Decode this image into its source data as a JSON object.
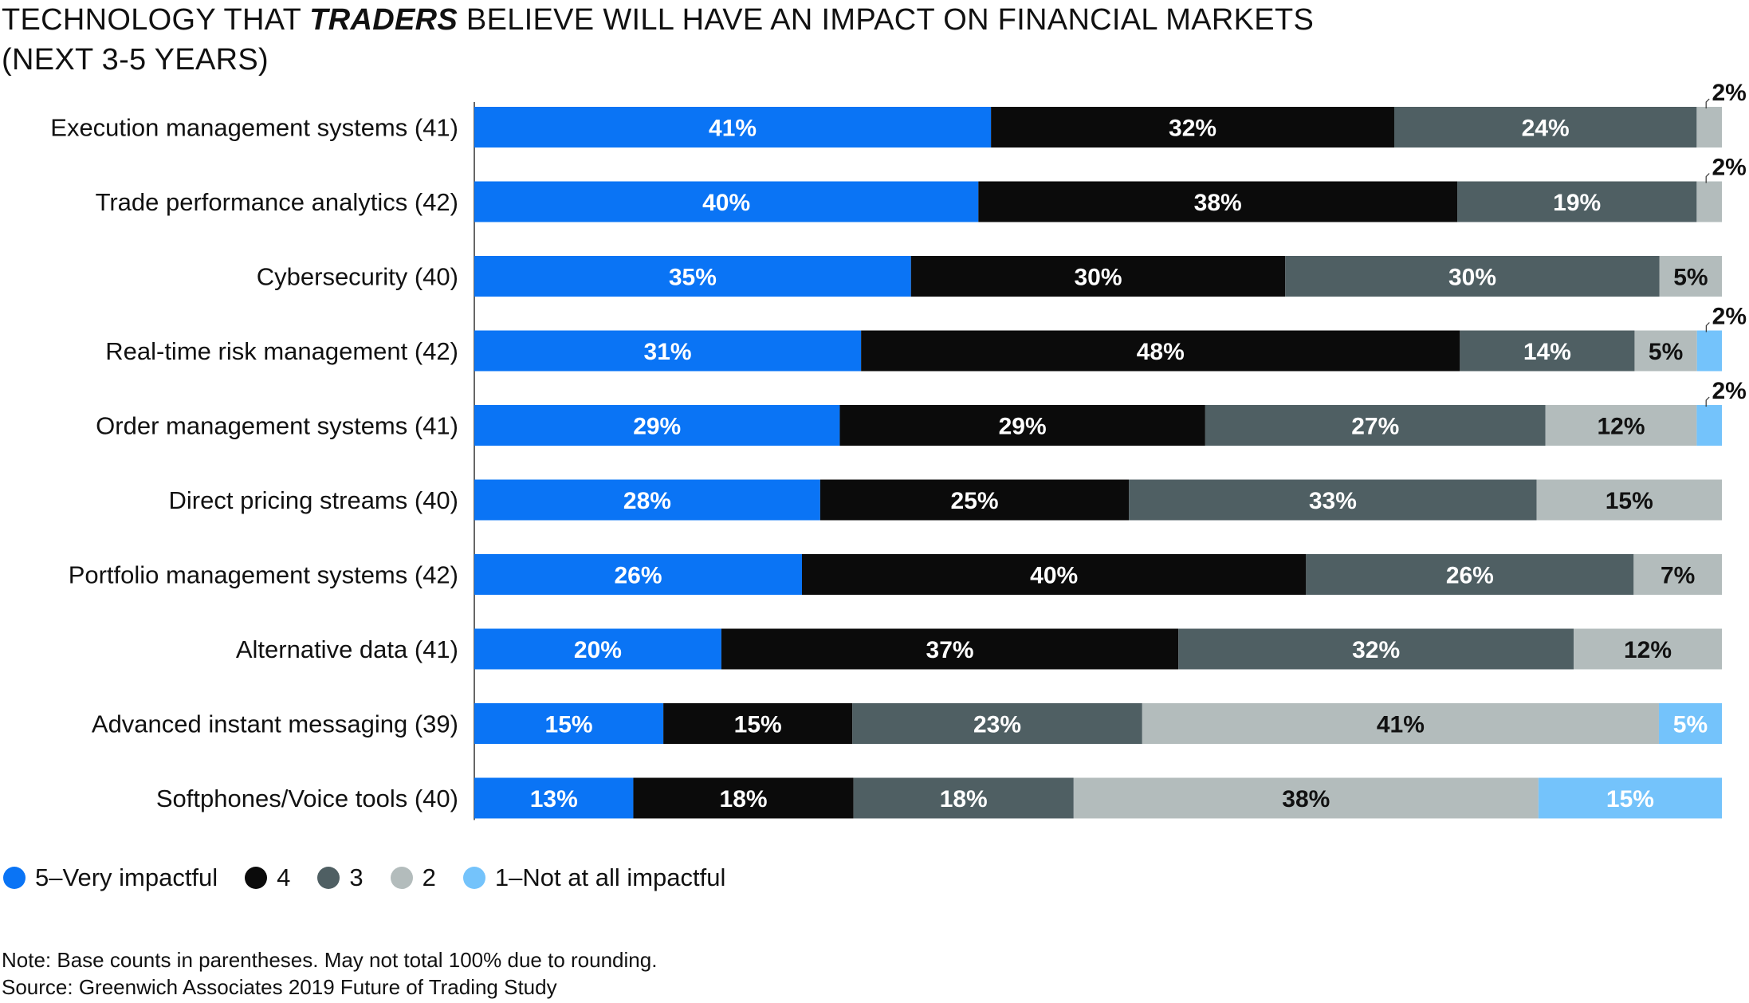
{
  "chart_data": {
    "type": "bar",
    "orientation": "horizontal",
    "stacked": true,
    "title_parts": [
      "TECHNOLOGY THAT ",
      "TRADERS",
      " BELIEVE WILL HAVE AN IMPACT ON FINANCIAL MARKETS"
    ],
    "title_line2": "(NEXT 3-5 YEARS)",
    "categories": [
      "Execution management systems (41)",
      "Trade performance analytics (42)",
      "Cybersecurity (40)",
      "Real-time risk management (42)",
      "Order management systems (41)",
      "Direct pricing streams (40)",
      "Portfolio management systems (42)",
      "Alternative data (41)",
      "Advanced instant messaging (39)",
      "Softphones/Voice tools (40)"
    ],
    "series": [
      {
        "name": "5–Very impactful",
        "color": "#0a74f5",
        "label_color": "#ffffff",
        "values": [
          41,
          40,
          35,
          31,
          29,
          28,
          26,
          20,
          15,
          13
        ]
      },
      {
        "name": "4",
        "color": "#0b0b0b",
        "label_color": "#ffffff",
        "values": [
          32,
          38,
          30,
          48,
          29,
          25,
          40,
          37,
          15,
          18
        ]
      },
      {
        "name": "3",
        "color": "#4f5f63",
        "label_color": "#ffffff",
        "values": [
          24,
          19,
          30,
          14,
          27,
          33,
          26,
          32,
          23,
          18
        ]
      },
      {
        "name": "2",
        "color": "#b3bcbc",
        "label_color": "#111111",
        "values": [
          2,
          2,
          5,
          5,
          12,
          15,
          7,
          12,
          41,
          38
        ]
      },
      {
        "name": "1–Not at all impactful",
        "color": "#74c3fb",
        "label_color": "#ffffff",
        "values": [
          0,
          0,
          0,
          2,
          2,
          0,
          0,
          0,
          5,
          15
        ]
      }
    ],
    "value_suffix": "%",
    "legend_position": "bottom-left",
    "grid": false
  },
  "notes": {
    "note": "Note: Base counts in parentheses. May not total 100% due to rounding.",
    "source": "Source: Greenwich Associates 2019 Future of Trading Study"
  }
}
